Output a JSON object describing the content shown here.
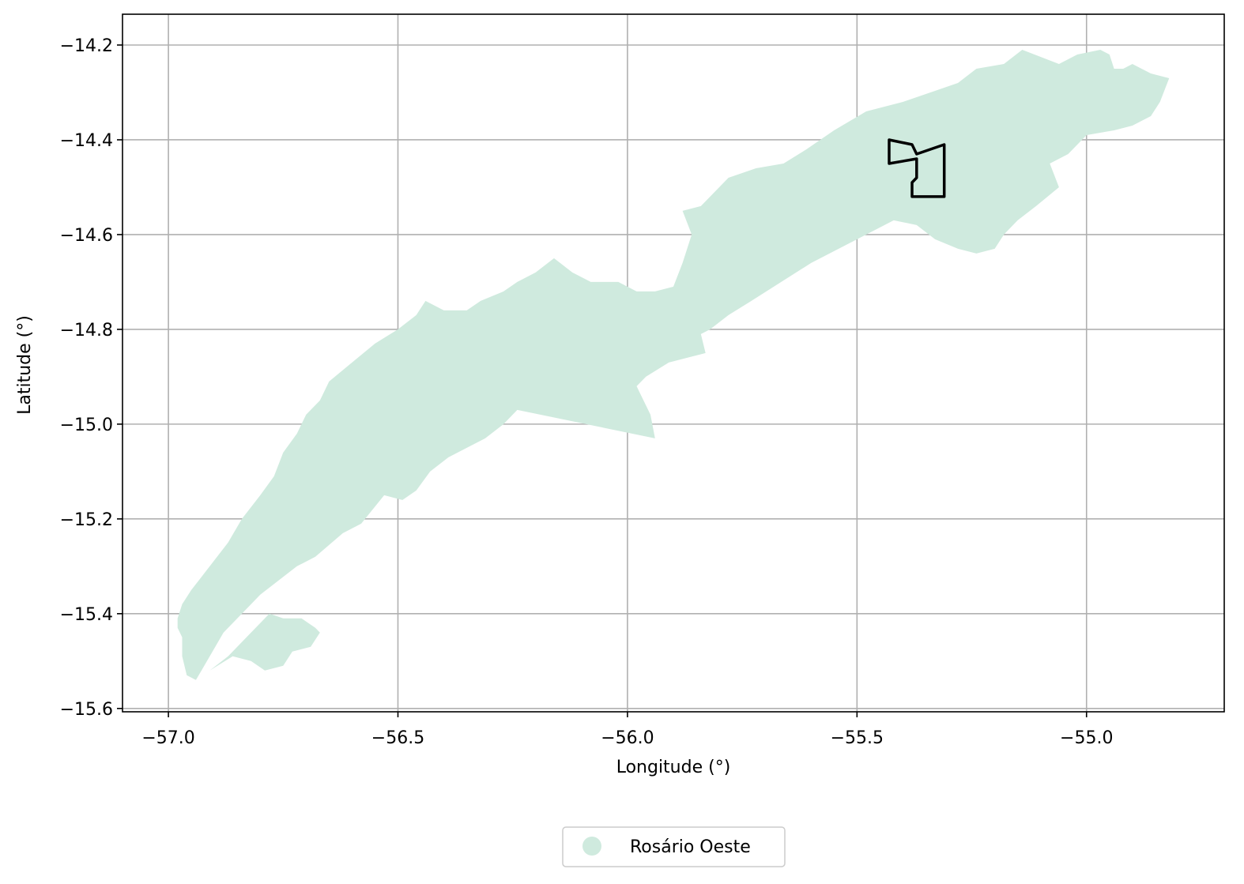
{
  "chart_data": {
    "type": "map",
    "xlabel": "Longitude (°)",
    "ylabel": "Latitude (°)",
    "xlim": [
      -57.1,
      -54.7
    ],
    "ylim": [
      -15.607,
      -14.135
    ],
    "xticks": [
      {
        "value": -57.0,
        "label": "−57.0"
      },
      {
        "value": -56.5,
        "label": "−56.5"
      },
      {
        "value": -56.0,
        "label": "−56.0"
      },
      {
        "value": -55.5,
        "label": "−55.5"
      },
      {
        "value": -55.0,
        "label": "−55.0"
      }
    ],
    "yticks": [
      {
        "value": -14.2,
        "label": "−14.2"
      },
      {
        "value": -14.4,
        "label": "−14.4"
      },
      {
        "value": -14.6,
        "label": "−14.6"
      },
      {
        "value": -14.8,
        "label": "−14.8"
      },
      {
        "value": -15.0,
        "label": "−15.0"
      },
      {
        "value": -15.2,
        "label": "−15.2"
      },
      {
        "value": -15.4,
        "label": "−15.4"
      },
      {
        "value": -15.6,
        "label": "−15.6"
      }
    ],
    "grid": true,
    "legend": {
      "placement": "bottom-center",
      "entries": [
        "Rosário Oeste"
      ]
    },
    "colors": {
      "region_fill": "#cfeade",
      "outline": "#000000",
      "grid": "#b0b0b0"
    },
    "regions": [
      {
        "name": "Rosário Oeste",
        "polygons": [
          [
            [
              -56.94,
              -15.54
            ],
            [
              -56.96,
              -15.53
            ],
            [
              -56.97,
              -15.49
            ],
            [
              -56.97,
              -15.47
            ],
            [
              -56.97,
              -15.45
            ],
            [
              -56.98,
              -15.43
            ],
            [
              -56.98,
              -15.41
            ],
            [
              -56.97,
              -15.38
            ],
            [
              -56.95,
              -15.35
            ],
            [
              -56.91,
              -15.3
            ],
            [
              -56.87,
              -15.25
            ],
            [
              -56.84,
              -15.2
            ],
            [
              -56.8,
              -15.15
            ],
            [
              -56.77,
              -15.11
            ],
            [
              -56.75,
              -15.06
            ],
            [
              -56.72,
              -15.02
            ],
            [
              -56.7,
              -14.98
            ],
            [
              -56.67,
              -14.95
            ],
            [
              -56.65,
              -14.91
            ],
            [
              -56.6,
              -14.87
            ],
            [
              -56.55,
              -14.83
            ],
            [
              -56.5,
              -14.8
            ],
            [
              -56.46,
              -14.77
            ],
            [
              -56.44,
              -14.74
            ],
            [
              -56.4,
              -14.76
            ],
            [
              -56.35,
              -14.76
            ],
            [
              -56.32,
              -14.74
            ],
            [
              -56.27,
              -14.72
            ],
            [
              -56.24,
              -14.7
            ],
            [
              -56.2,
              -14.68
            ],
            [
              -56.16,
              -14.65
            ],
            [
              -56.12,
              -14.68
            ],
            [
              -56.08,
              -14.7
            ],
            [
              -56.02,
              -14.7
            ],
            [
              -55.98,
              -14.72
            ],
            [
              -55.94,
              -14.72
            ],
            [
              -55.9,
              -14.71
            ],
            [
              -55.88,
              -14.66
            ],
            [
              -55.86,
              -14.6
            ],
            [
              -55.88,
              -14.55
            ],
            [
              -55.84,
              -14.54
            ],
            [
              -55.78,
              -14.48
            ],
            [
              -55.72,
              -14.46
            ],
            [
              -55.66,
              -14.45
            ],
            [
              -55.61,
              -14.42
            ],
            [
              -55.55,
              -14.38
            ],
            [
              -55.48,
              -14.34
            ],
            [
              -55.4,
              -14.32
            ],
            [
              -55.34,
              -14.3
            ],
            [
              -55.28,
              -14.28
            ],
            [
              -55.24,
              -14.25
            ],
            [
              -55.18,
              -14.24
            ],
            [
              -55.14,
              -14.21
            ],
            [
              -55.06,
              -14.24
            ],
            [
              -55.02,
              -14.22
            ],
            [
              -54.97,
              -14.21
            ],
            [
              -54.95,
              -14.22
            ],
            [
              -54.94,
              -14.25
            ],
            [
              -54.92,
              -14.25
            ],
            [
              -54.9,
              -14.24
            ],
            [
              -54.86,
              -14.26
            ],
            [
              -54.82,
              -14.27
            ],
            [
              -54.84,
              -14.32
            ],
            [
              -54.86,
              -14.35
            ],
            [
              -54.9,
              -14.37
            ],
            [
              -54.94,
              -14.38
            ],
            [
              -55.0,
              -14.39
            ],
            [
              -55.04,
              -14.43
            ],
            [
              -55.08,
              -14.45
            ],
            [
              -55.06,
              -14.5
            ],
            [
              -55.11,
              -14.54
            ],
            [
              -55.15,
              -14.57
            ],
            [
              -55.18,
              -14.6
            ],
            [
              -55.2,
              -14.63
            ],
            [
              -55.24,
              -14.64
            ],
            [
              -55.28,
              -14.63
            ],
            [
              -55.33,
              -14.61
            ],
            [
              -55.37,
              -14.58
            ],
            [
              -55.42,
              -14.57
            ],
            [
              -55.48,
              -14.6
            ],
            [
              -55.6,
              -14.66
            ],
            [
              -55.73,
              -14.74
            ],
            [
              -55.78,
              -14.77
            ],
            [
              -55.82,
              -14.8
            ],
            [
              -55.84,
              -14.81
            ],
            [
              -55.83,
              -14.85
            ],
            [
              -55.87,
              -14.86
            ],
            [
              -55.91,
              -14.87
            ],
            [
              -55.96,
              -14.9
            ],
            [
              -55.98,
              -14.92
            ],
            [
              -55.95,
              -14.98
            ],
            [
              -55.94,
              -15.03
            ],
            [
              -56.24,
              -14.97
            ],
            [
              -56.27,
              -15.0
            ],
            [
              -56.31,
              -15.03
            ],
            [
              -56.35,
              -15.05
            ],
            [
              -56.39,
              -15.07
            ],
            [
              -56.43,
              -15.1
            ],
            [
              -56.46,
              -15.14
            ],
            [
              -56.49,
              -15.16
            ],
            [
              -56.53,
              -15.15
            ],
            [
              -56.58,
              -15.21
            ],
            [
              -56.62,
              -15.23
            ],
            [
              -56.68,
              -15.28
            ],
            [
              -56.72,
              -15.3
            ],
            [
              -56.8,
              -15.36
            ],
            [
              -56.88,
              -15.44
            ]
          ],
          [
            [
              -56.91,
              -15.52
            ],
            [
              -56.87,
              -15.49
            ],
            [
              -56.83,
              -15.45
            ],
            [
              -56.78,
              -15.4
            ],
            [
              -56.75,
              -15.41
            ],
            [
              -56.71,
              -15.41
            ],
            [
              -56.68,
              -15.43
            ],
            [
              -56.67,
              -15.44
            ],
            [
              -56.69,
              -15.47
            ],
            [
              -56.73,
              -15.48
            ],
            [
              -56.75,
              -15.51
            ],
            [
              -56.79,
              -15.52
            ],
            [
              -56.82,
              -15.5
            ],
            [
              -56.86,
              -15.49
            ]
          ]
        ]
      }
    ],
    "outlines": [
      [
        [
          -55.43,
          -14.4
        ],
        [
          -55.38,
          -14.41
        ],
        [
          -55.37,
          -14.43
        ],
        [
          -55.31,
          -14.41
        ],
        [
          -55.31,
          -14.52
        ],
        [
          -55.38,
          -14.52
        ],
        [
          -55.38,
          -14.49
        ],
        [
          -55.37,
          -14.48
        ],
        [
          -55.37,
          -14.44
        ],
        [
          -55.43,
          -14.45
        ]
      ]
    ]
  }
}
